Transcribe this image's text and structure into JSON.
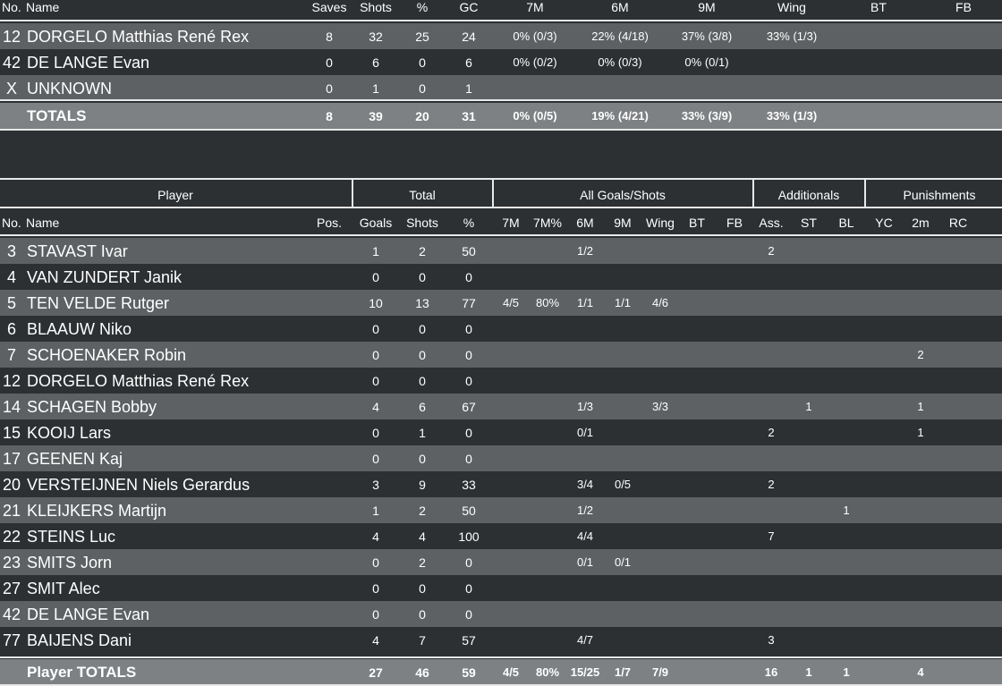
{
  "goalkeepers": {
    "headers": {
      "no": "No.",
      "name": "Name",
      "saves": "Saves",
      "shots": "Shots",
      "pct": "%",
      "gc": "GC",
      "m7": "7M",
      "m6": "6M",
      "m9": "9M",
      "wing": "Wing",
      "bt": "BT",
      "fb": "FB"
    },
    "rows": [
      {
        "no": "12",
        "name": "DORGELO Matthias René Rex",
        "saves": "8",
        "shots": "32",
        "pct": "25",
        "gc": "24",
        "m7": "0% (0/3)",
        "m6": "22% (4/18)",
        "m9": "37% (3/8)",
        "wing": "33% (1/3)",
        "bt": "",
        "fb": ""
      },
      {
        "no": "42",
        "name": "DE LANGE Evan",
        "saves": "0",
        "shots": "6",
        "pct": "0",
        "gc": "6",
        "m7": "0% (0/2)",
        "m6": "0% (0/3)",
        "m9": "0% (0/1)",
        "wing": "",
        "bt": "",
        "fb": ""
      },
      {
        "no": "X",
        "name": "UNKNOWN",
        "saves": "0",
        "shots": "1",
        "pct": "0",
        "gc": "1",
        "m7": "",
        "m6": "",
        "m9": "",
        "wing": "",
        "bt": "",
        "fb": ""
      }
    ],
    "totals": {
      "label": "TOTALS",
      "saves": "8",
      "shots": "39",
      "pct": "20",
      "gc": "31",
      "m7": "0% (0/5)",
      "m6": "19% (4/21)",
      "m9": "33% (3/9)",
      "wing": "33% (1/3)",
      "bt": "",
      "fb": ""
    }
  },
  "players": {
    "groups": {
      "player": "Player",
      "total": "Total",
      "all": "All Goals/Shots",
      "additionals": "Additionals",
      "punishments": "Punishments"
    },
    "headers": {
      "no": "No.",
      "name": "Name",
      "pos": "Pos.",
      "goals": "Goals",
      "shots": "Shots",
      "pct": "%",
      "m7": "7M",
      "m7p": "7M%",
      "m6": "6M",
      "m9": "9M",
      "wing": "Wing",
      "bt": "BT",
      "fb": "FB",
      "ass": "Ass.",
      "st": "ST",
      "bl": "BL",
      "yc": "YC",
      "m2": "2m",
      "rc": "RC"
    },
    "rows": [
      {
        "no": "3",
        "name": "STAVAST Ivar",
        "pos": "",
        "goals": "1",
        "shots": "2",
        "pct": "50",
        "m7": "",
        "m7p": "",
        "m6": "1/2",
        "m9": "",
        "wing": "",
        "bt": "",
        "fb": "",
        "ass": "2",
        "st": "",
        "bl": "",
        "yc": "",
        "m2": "",
        "rc": ""
      },
      {
        "no": "4",
        "name": "VAN ZUNDERT Janik",
        "pos": "",
        "goals": "0",
        "shots": "0",
        "pct": "0",
        "m7": "",
        "m7p": "",
        "m6": "",
        "m9": "",
        "wing": "",
        "bt": "",
        "fb": "",
        "ass": "",
        "st": "",
        "bl": "",
        "yc": "",
        "m2": "",
        "rc": ""
      },
      {
        "no": "5",
        "name": "TEN VELDE Rutger",
        "pos": "",
        "goals": "10",
        "shots": "13",
        "pct": "77",
        "m7": "4/5",
        "m7p": "80%",
        "m6": "1/1",
        "m9": "1/1",
        "wing": "4/6",
        "bt": "",
        "fb": "",
        "ass": "",
        "st": "",
        "bl": "",
        "yc": "",
        "m2": "",
        "rc": ""
      },
      {
        "no": "6",
        "name": "BLAAUW Niko",
        "pos": "",
        "goals": "0",
        "shots": "0",
        "pct": "0",
        "m7": "",
        "m7p": "",
        "m6": "",
        "m9": "",
        "wing": "",
        "bt": "",
        "fb": "",
        "ass": "",
        "st": "",
        "bl": "",
        "yc": "",
        "m2": "",
        "rc": ""
      },
      {
        "no": "7",
        "name": "SCHOENAKER Robin",
        "pos": "",
        "goals": "0",
        "shots": "0",
        "pct": "0",
        "m7": "",
        "m7p": "",
        "m6": "",
        "m9": "",
        "wing": "",
        "bt": "",
        "fb": "",
        "ass": "",
        "st": "",
        "bl": "",
        "yc": "",
        "m2": "2",
        "rc": ""
      },
      {
        "no": "12",
        "name": "DORGELO Matthias René Rex",
        "pos": "",
        "goals": "0",
        "shots": "0",
        "pct": "0",
        "m7": "",
        "m7p": "",
        "m6": "",
        "m9": "",
        "wing": "",
        "bt": "",
        "fb": "",
        "ass": "",
        "st": "",
        "bl": "",
        "yc": "",
        "m2": "",
        "rc": ""
      },
      {
        "no": "14",
        "name": "SCHAGEN Bobby",
        "pos": "",
        "goals": "4",
        "shots": "6",
        "pct": "67",
        "m7": "",
        "m7p": "",
        "m6": "1/3",
        "m9": "",
        "wing": "3/3",
        "bt": "",
        "fb": "",
        "ass": "",
        "st": "1",
        "bl": "",
        "yc": "",
        "m2": "1",
        "rc": ""
      },
      {
        "no": "15",
        "name": "KOOIJ Lars",
        "pos": "",
        "goals": "0",
        "shots": "1",
        "pct": "0",
        "m7": "",
        "m7p": "",
        "m6": "0/1",
        "m9": "",
        "wing": "",
        "bt": "",
        "fb": "",
        "ass": "2",
        "st": "",
        "bl": "",
        "yc": "",
        "m2": "1",
        "rc": ""
      },
      {
        "no": "17",
        "name": "GEENEN Kaj",
        "pos": "",
        "goals": "0",
        "shots": "0",
        "pct": "0",
        "m7": "",
        "m7p": "",
        "m6": "",
        "m9": "",
        "wing": "",
        "bt": "",
        "fb": "",
        "ass": "",
        "st": "",
        "bl": "",
        "yc": "",
        "m2": "",
        "rc": ""
      },
      {
        "no": "20",
        "name": "VERSTEIJNEN Niels Gerardus",
        "pos": "",
        "goals": "3",
        "shots": "9",
        "pct": "33",
        "m7": "",
        "m7p": "",
        "m6": "3/4",
        "m9": "0/5",
        "wing": "",
        "bt": "",
        "fb": "",
        "ass": "2",
        "st": "",
        "bl": "",
        "yc": "",
        "m2": "",
        "rc": ""
      },
      {
        "no": "21",
        "name": "KLEIJKERS Martijn",
        "pos": "",
        "goals": "1",
        "shots": "2",
        "pct": "50",
        "m7": "",
        "m7p": "",
        "m6": "1/2",
        "m9": "",
        "wing": "",
        "bt": "",
        "fb": "",
        "ass": "",
        "st": "",
        "bl": "1",
        "yc": "",
        "m2": "",
        "rc": ""
      },
      {
        "no": "22",
        "name": "STEINS Luc",
        "pos": "",
        "goals": "4",
        "shots": "4",
        "pct": "100",
        "m7": "",
        "m7p": "",
        "m6": "4/4",
        "m9": "",
        "wing": "",
        "bt": "",
        "fb": "",
        "ass": "7",
        "st": "",
        "bl": "",
        "yc": "",
        "m2": "",
        "rc": ""
      },
      {
        "no": "23",
        "name": "SMITS Jorn",
        "pos": "",
        "goals": "0",
        "shots": "2",
        "pct": "0",
        "m7": "",
        "m7p": "",
        "m6": "0/1",
        "m9": "0/1",
        "wing": "",
        "bt": "",
        "fb": "",
        "ass": "",
        "st": "",
        "bl": "",
        "yc": "",
        "m2": "",
        "rc": ""
      },
      {
        "no": "27",
        "name": "SMIT Alec",
        "pos": "",
        "goals": "0",
        "shots": "0",
        "pct": "0",
        "m7": "",
        "m7p": "",
        "m6": "",
        "m9": "",
        "wing": "",
        "bt": "",
        "fb": "",
        "ass": "",
        "st": "",
        "bl": "",
        "yc": "",
        "m2": "",
        "rc": ""
      },
      {
        "no": "42",
        "name": "DE LANGE Evan",
        "pos": "",
        "goals": "0",
        "shots": "0",
        "pct": "0",
        "m7": "",
        "m7p": "",
        "m6": "",
        "m9": "",
        "wing": "",
        "bt": "",
        "fb": "",
        "ass": "",
        "st": "",
        "bl": "",
        "yc": "",
        "m2": "",
        "rc": ""
      },
      {
        "no": "77",
        "name": "BAIJENS Dani",
        "pos": "",
        "goals": "4",
        "shots": "7",
        "pct": "57",
        "m7": "",
        "m7p": "",
        "m6": "4/7",
        "m9": "",
        "wing": "",
        "bt": "",
        "fb": "",
        "ass": "3",
        "st": "",
        "bl": "",
        "yc": "",
        "m2": "",
        "rc": ""
      }
    ],
    "totals": {
      "label": "Player TOTALS",
      "goals": "27",
      "shots": "46",
      "pct": "59",
      "m7": "4/5",
      "m7p": "80%",
      "m6": "15/25",
      "m9": "1/7",
      "wing": "7/9",
      "bt": "",
      "fb": "",
      "ass": "16",
      "st": "1",
      "bl": "1",
      "yc": "",
      "m2": "4",
      "rc": ""
    }
  }
}
